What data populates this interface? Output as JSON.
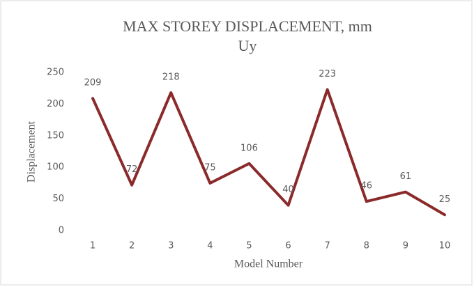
{
  "chart_data": {
    "type": "line",
    "title": "MAX STOREY DISPLACEMENT, mm",
    "subtitle": "Uy",
    "x_label": "Model Number",
    "y_label": "Displacement",
    "categories": [
      "1",
      "2",
      "3",
      "4",
      "5",
      "6",
      "7",
      "8",
      "9",
      "10"
    ],
    "series": [
      {
        "name": "Uy",
        "color": "#8b2a2a",
        "values": [
          209,
          72,
          218,
          75,
          106,
          40,
          223,
          46,
          61,
          25
        ]
      }
    ],
    "ylim": [
      0,
      250
    ],
    "yticks": [
      0,
      50,
      100,
      150,
      200,
      250
    ],
    "grid": false
  }
}
